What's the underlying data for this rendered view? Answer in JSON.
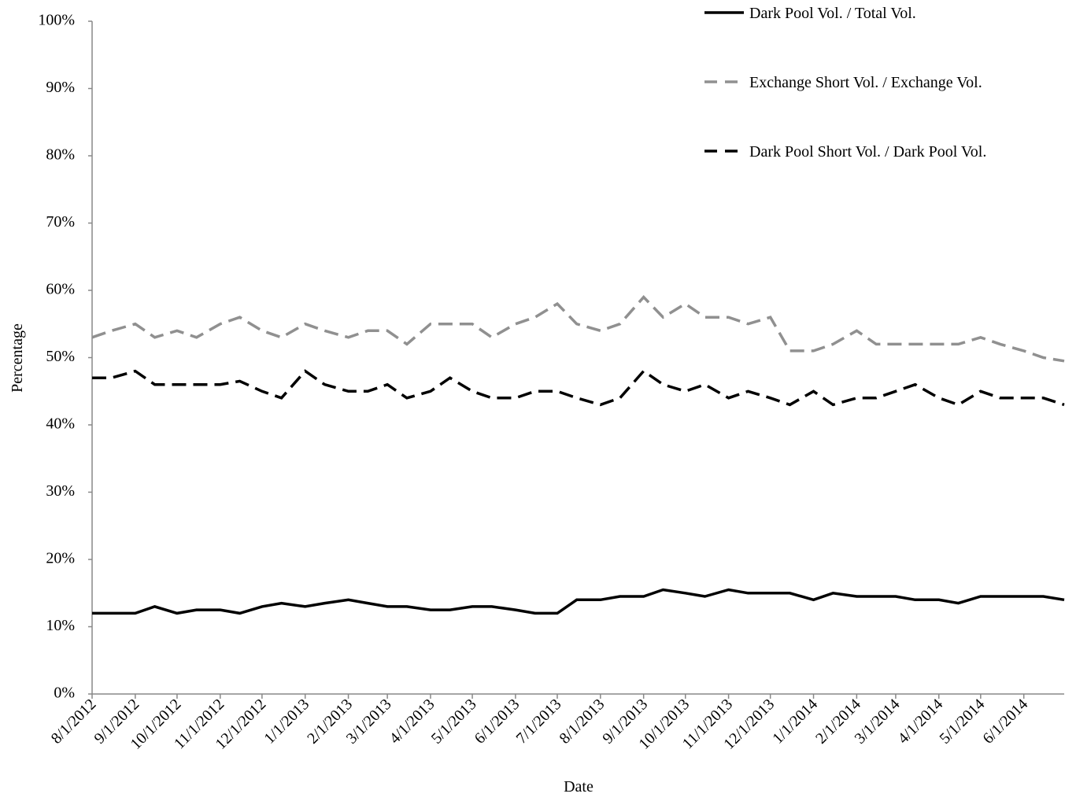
{
  "chart_data": {
    "type": "line",
    "x_label": "Date",
    "y_label": "Percentage",
    "x": [
      "8/1/2012",
      "8/15/2012",
      "9/1/2012",
      "9/15/2012",
      "10/1/2012",
      "10/15/2012",
      "11/1/2012",
      "11/15/2012",
      "12/1/2012",
      "12/15/2012",
      "1/1/2013",
      "1/15/2013",
      "2/1/2013",
      "2/15/2013",
      "3/1/2013",
      "3/15/2013",
      "4/1/2013",
      "4/15/2013",
      "5/1/2013",
      "5/15/2013",
      "6/1/2013",
      "6/15/2013",
      "7/1/2013",
      "7/15/2013",
      "8/1/2013",
      "8/15/2013",
      "9/1/2013",
      "9/15/2013",
      "10/1/2013",
      "10/15/2013",
      "11/1/2013",
      "11/15/2013",
      "12/1/2013",
      "12/15/2013",
      "1/1/2014",
      "1/15/2014",
      "2/1/2014",
      "2/15/2014",
      "3/1/2014",
      "3/15/2014",
      "4/1/2014",
      "4/15/2014",
      "5/1/2014",
      "5/15/2014",
      "6/1/2014",
      "6/15/2014",
      "6/30/2014"
    ],
    "series": [
      {
        "name": "Dark Pool Vol. / Total Vol.",
        "color": "#000000",
        "line_style": "solid",
        "values": [
          12,
          12,
          12,
          13,
          12,
          12.5,
          12.5,
          12,
          13,
          13.5,
          13,
          13.5,
          14,
          13.5,
          13,
          13,
          12.5,
          12.5,
          13,
          13,
          12.5,
          12,
          12,
          14,
          14,
          14.5,
          14.5,
          15.5,
          15,
          14.5,
          15.5,
          15,
          15,
          15,
          14,
          15,
          14.5,
          14.5,
          14.5,
          14,
          14,
          13.5,
          14.5,
          14.5,
          14.5,
          14.5,
          14
        ]
      },
      {
        "name": "Exchange Short Vol. / Exchange Vol.",
        "color": "#909090",
        "line_style": "dashed",
        "values": [
          53,
          54,
          55,
          53,
          54,
          53,
          55,
          56,
          54,
          53,
          55,
          54,
          53,
          54,
          54,
          52,
          55,
          55,
          55,
          53,
          55,
          56,
          58,
          55,
          54,
          55,
          59,
          56,
          58,
          56,
          56,
          55,
          56,
          51,
          51,
          52,
          54,
          52,
          52,
          52,
          52,
          52,
          53,
          52,
          51,
          50,
          49.5
        ]
      },
      {
        "name": "Dark Pool Short Vol. / Dark Pool Vol.",
        "color": "#000000",
        "line_style": "dashed",
        "values": [
          47,
          47,
          48,
          46,
          46,
          46,
          46,
          46.5,
          45,
          44,
          48,
          46,
          45,
          45,
          46,
          44,
          45,
          47,
          45,
          44,
          44,
          45,
          45,
          44,
          43,
          44,
          48,
          46,
          45,
          46,
          44,
          45,
          44,
          43,
          45,
          43,
          44,
          44,
          45,
          46,
          44,
          43,
          45,
          44,
          44,
          44,
          43
        ]
      }
    ],
    "xlim": [
      "8/1/2012",
      "6/30/2014"
    ],
    "xticks": [
      "8/1/2012",
      "9/1/2012",
      "10/1/2012",
      "11/1/2012",
      "12/1/2012",
      "1/1/2013",
      "2/1/2013",
      "3/1/2013",
      "4/1/2013",
      "5/1/2013",
      "6/1/2013",
      "7/1/2013",
      "8/1/2013",
      "9/1/2013",
      "10/1/2013",
      "11/1/2013",
      "12/1/2013",
      "1/1/2014",
      "2/1/2014",
      "3/1/2014",
      "4/1/2014",
      "5/1/2014",
      "6/1/2014"
    ],
    "ylim": [
      0,
      100
    ],
    "yticks": [
      {
        "value": 0,
        "label": "0%"
      },
      {
        "value": 10,
        "label": "10%"
      },
      {
        "value": 20,
        "label": "20%"
      },
      {
        "value": 30,
        "label": "30%"
      },
      {
        "value": 40,
        "label": "40%"
      },
      {
        "value": 50,
        "label": "50%"
      },
      {
        "value": 60,
        "label": "60%"
      },
      {
        "value": 70,
        "label": "70%"
      },
      {
        "value": 80,
        "label": "80%"
      },
      {
        "value": 90,
        "label": "90%"
      },
      {
        "value": 100,
        "label": "100%"
      }
    ],
    "grid": false,
    "legend": "upper right"
  }
}
